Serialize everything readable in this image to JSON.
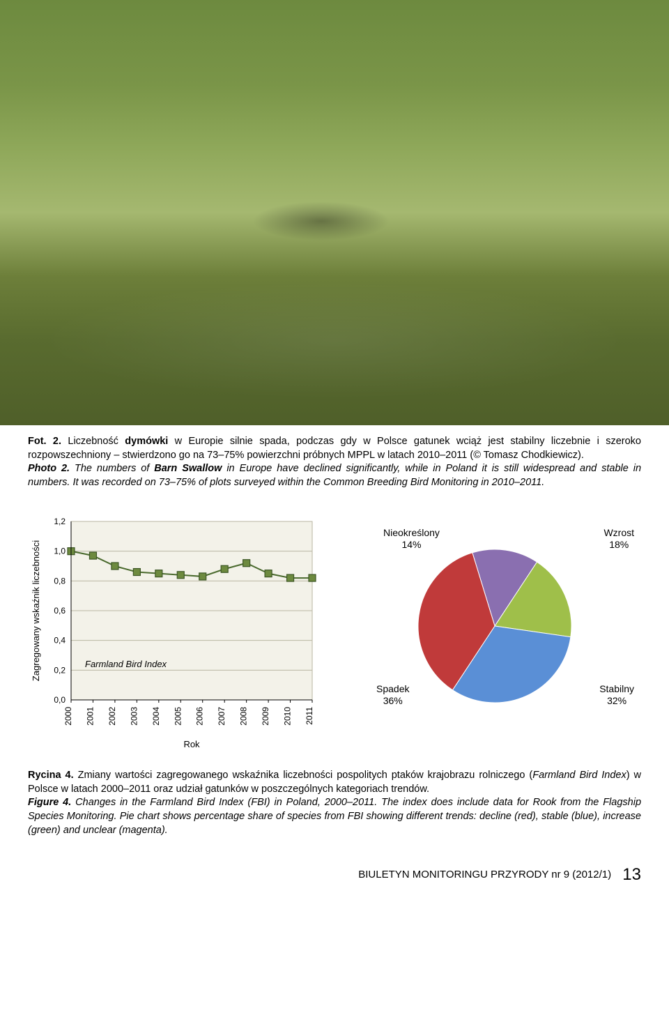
{
  "photo_caption": {
    "label_pl": "Fot. 2.",
    "text_pl_1": "Liczebność ",
    "bold_pl": "dymówki",
    "text_pl_2": " w Europie silnie spada, podczas gdy w Polsce gatunek wciąż jest stabilny liczebnie i szeroko rozpowszechniony – stwierdzono go na 73–75% powierzchni próbnych MPPL w latach 2010–2011 (© Tomasz Chodkiewicz).",
    "label_en": "Photo 2.",
    "text_en_1": "The numbers of ",
    "bold_en": "Barn Swallow",
    "text_en_2": " in Europe have declined significantly, while in Poland it is still widespread and stable in numbers. It was recorded on 73–75% of plots surveyed within the Common Breeding Bird Monitoring in 2010–2011."
  },
  "line_chart": {
    "type": "line",
    "ylabel": "Zagregowany wskaźnik liczebności",
    "xlabel": "Rok",
    "legend": "Farmland Bird Index",
    "years": [
      "2000",
      "2001",
      "2002",
      "2003",
      "2004",
      "2005",
      "2006",
      "2007",
      "2008",
      "2009",
      "2010",
      "2011"
    ],
    "values": [
      1.0,
      0.97,
      0.9,
      0.86,
      0.85,
      0.84,
      0.83,
      0.88,
      0.92,
      0.85,
      0.82,
      0.82
    ],
    "ylim": [
      0.0,
      1.2
    ],
    "yticks": [
      "0,0",
      "0,2",
      "0,4",
      "0,6",
      "0,8",
      "1,0",
      "1,2"
    ],
    "ytick_vals": [
      0.0,
      0.2,
      0.4,
      0.6,
      0.8,
      1.0,
      1.2
    ],
    "line_color": "#4a6a2e",
    "marker_fill": "#6d8a3f",
    "marker_stroke": "#3c5625",
    "marker_size": 5,
    "line_width": 2,
    "plot_bg": "#f3f2e9",
    "grid_color": "#b9b6a2",
    "axis_color": "#000000",
    "label_fontsize": 13,
    "tick_fontsize": 12
  },
  "pie_chart": {
    "type": "pie",
    "slices": [
      {
        "label": "Nieokreślony",
        "pct": "14%",
        "value": 14,
        "color": "#8a6fb0"
      },
      {
        "label": "Wzrost",
        "pct": "18%",
        "value": 18,
        "color": "#9fbf4a"
      },
      {
        "label": "Stabilny",
        "pct": "32%",
        "value": 32,
        "color": "#5a8fd6"
      },
      {
        "label": "Spadek",
        "pct": "36%",
        "value": 36,
        "color": "#c03a3a"
      }
    ],
    "stroke": "#ffffff",
    "stroke_width": 1,
    "start_angle_deg": -107,
    "label_fontsize": 14
  },
  "figure_caption": {
    "label_pl": "Rycina 4.",
    "text_pl_1": "Zmiany wartości zagregowanego wskaźnika liczebności pospolitych ptaków krajobrazu rolniczego (",
    "italic_pl": "Farmland Bird Index",
    "text_pl_2": ") w Polsce w latach 2000–2011 oraz udział gatunków w poszczególnych kategoriach trendów.",
    "label_en": "Figure 4.",
    "text_en": "Changes in the Farmland Bird Index (FBI) in Poland, 2000–2011. The index does include data for Rook from the Flagship Species Monitoring. Pie chart shows percentage share of species from FBI showing different trends: decline (red), stable (blue), increase (green) and unclear (magenta)."
  },
  "footer": {
    "text": "BIULETYN MONITORINGU PRZYRODY nr 9 (2012/1)",
    "page": "13"
  }
}
